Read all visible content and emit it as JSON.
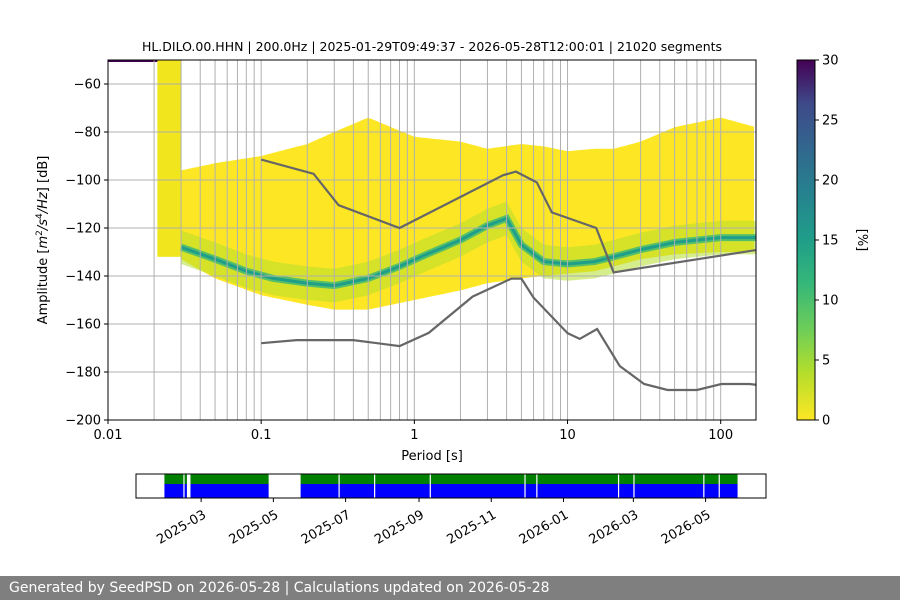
{
  "chart_data": [
    {
      "type": "heatmap",
      "title": "HL.DILO.00.HHN | 200.0Hz | 2025-01-29T09:49:37 - 2026-05-28T12:00:01 | 21020 segments",
      "xlabel": "Period [s]",
      "ylabel_parts": [
        "Amplitude [",
        "m",
        "2",
        "/",
        "s",
        "4",
        "/",
        "Hz",
        "] [dB]"
      ],
      "x_scale": "log",
      "xlim": [
        0.01,
        170
      ],
      "ylim": [
        -200,
        -50
      ],
      "x_ticks": [
        0.01,
        0.1,
        1,
        10,
        100
      ],
      "x_tick_labels": [
        "0.01",
        "0.1",
        "1",
        "10",
        "100"
      ],
      "y_ticks": [
        -200,
        -180,
        -160,
        -140,
        -120,
        -100,
        -80,
        -60
      ],
      "y_tick_labels": [
        "−200",
        "−180",
        "−160",
        "−140",
        "−120",
        "−100",
        "−80",
        "−60"
      ],
      "grid": true,
      "colormap": "viridis_r",
      "colorbar": {
        "label": "[%]",
        "range": [
          0,
          30
        ],
        "ticks": [
          0,
          5,
          10,
          15,
          20,
          25,
          30
        ],
        "tick_labels": [
          "0",
          "5",
          "10",
          "15",
          "20",
          "25",
          "30"
        ]
      },
      "mode_line": {
        "name": "mode",
        "period": [
          0.03,
          0.05,
          0.08,
          0.12,
          0.2,
          0.3,
          0.5,
          0.8,
          1.2,
          2,
          3,
          4,
          5,
          7,
          10,
          15,
          20,
          30,
          50,
          100,
          170
        ],
        "db": [
          -128,
          -133,
          -138,
          -141,
          -143,
          -144,
          -141,
          -136,
          -131,
          -125,
          -119,
          -116,
          -127,
          -134,
          -135,
          -134,
          -132,
          -129,
          -126,
          -124,
          -124
        ]
      },
      "nhnm": {
        "name": "NHNM",
        "color": "#666666",
        "period": [
          0.1,
          0.22,
          0.32,
          0.8,
          3.8,
          4.6,
          6.3,
          7.9,
          15.4,
          20,
          354.8
        ],
        "db": [
          -91.5,
          -97.4,
          -110.5,
          -120,
          -98,
          -96.5,
          -101,
          -113.5,
          -120,
          -138.5,
          -126
        ]
      },
      "nlnm": {
        "name": "NLNM",
        "color": "#666666",
        "period": [
          0.1,
          0.17,
          0.4,
          0.8,
          1.24,
          2.4,
          4.3,
          5,
          6,
          10,
          12,
          15.6,
          21.9,
          31.6,
          45,
          70,
          101,
          154,
          328
        ],
        "db": [
          -168,
          -166.7,
          -166.7,
          -169.2,
          -163.7,
          -148.6,
          -141.1,
          -141.1,
          -149,
          -163.8,
          -166.2,
          -162.1,
          -177.5,
          -185,
          -187.5,
          -187.5,
          -185,
          -185,
          -187.5
        ]
      }
    },
    {
      "type": "timeline",
      "date_ticks": [
        "2025-03",
        "2025-05",
        "2025-07",
        "2025-09",
        "2025-11",
        "2026-01",
        "2026-03",
        "2026-05"
      ],
      "data_start": "2025-01-29",
      "data_end": "2026-05-28",
      "tracks": [
        {
          "color": "#008000",
          "segments": [
            [
              "2025-01-29",
              "2025-02-17"
            ],
            [
              "2025-02-20",
              "2025-04-27"
            ],
            [
              "2025-05-24",
              "2026-05-28"
            ]
          ]
        },
        {
          "color": "#0000ff",
          "segments": [
            [
              "2025-01-29",
              "2025-02-17"
            ],
            [
              "2025-02-20",
              "2025-04-27"
            ],
            [
              "2025-05-24",
              "2026-05-28"
            ]
          ]
        }
      ],
      "gaps": [
        "2025-02-14",
        "2025-06-25",
        "2025-07-25",
        "2025-09-10",
        "2025-11-29",
        "2025-12-09",
        "2026-02-16",
        "2026-03-01",
        "2026-04-29",
        "2026-05-12"
      ]
    }
  ],
  "footer": {
    "text": "Generated by SeedPSD on 2026-05-28 | Calculations updated on 2026-05-28"
  }
}
